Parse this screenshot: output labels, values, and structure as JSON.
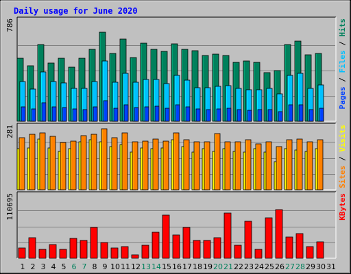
{
  "chart_data": {
    "type": "bar",
    "title": "Daily usage for June 2020",
    "categories": [
      "1",
      "2",
      "3",
      "4",
      "5",
      "6",
      "7",
      "8",
      "9",
      "10",
      "11",
      "12",
      "13",
      "14",
      "15",
      "16",
      "17",
      "18",
      "19",
      "20",
      "21",
      "22",
      "23",
      "24",
      "25",
      "26",
      "27",
      "28",
      "29",
      "30",
      "31"
    ],
    "weekend_days": [
      "6",
      "7",
      "13",
      "14",
      "20",
      "21",
      "27",
      "28"
    ],
    "colors": {
      "background": "#c0c0c0",
      "title": "#0000ff",
      "hits": "#00805c",
      "files": "#00c0ff",
      "pages": "#0040ff",
      "visits": "#ffff00",
      "sites": "#ff8000",
      "kbytes": "#ff0000",
      "weekday_label": "#000000",
      "weekend_label": "#00805c"
    },
    "panels": [
      {
        "name": "hits-files-pages",
        "max_label": "786",
        "ylim": [
          0,
          786
        ],
        "series": [
          {
            "name": "Hits",
            "values": [
              488,
              430,
              595,
              451,
              486,
              422,
              489,
              555,
              690,
              525,
              638,
              496,
              607,
              558,
              540,
              601,
              559,
              547,
              510,
              520,
              512,
              457,
              465,
              457,
              379,
              392,
              593,
              624,
              513,
              525,
              0
            ]
          },
          {
            "name": "Files",
            "values": [
              310,
              250,
              385,
              306,
              296,
              256,
              257,
              308,
              470,
              304,
              370,
              301,
              324,
              326,
              291,
              356,
              321,
              262,
              261,
              271,
              276,
              257,
              242,
              245,
              253,
              213,
              357,
              370,
              256,
              283,
              0
            ]
          },
          {
            "name": "Pages",
            "values": [
              110,
              98,
              145,
              112,
              105,
              95,
              92,
              110,
              158,
              102,
              130,
              108,
              112,
              115,
              102,
              128,
              112,
              96,
              90,
              98,
              100,
              90,
              85,
              88,
              90,
              75,
              125,
              130,
              92,
              100,
              0
            ]
          }
        ],
        "legend": [
          "Pages",
          "Files",
          "Hits"
        ]
      },
      {
        "name": "visits-sites",
        "max_label": "281",
        "ylim": [
          0,
          281
        ],
        "series": [
          {
            "name": "Visits",
            "values": [
              180,
              185,
              225,
              185,
              170,
              180,
              210,
              220,
              210,
              190,
              200,
              165,
              185,
              180,
              185,
              220,
              190,
              165,
              180,
              170,
              180,
              170,
              165,
              180,
              165,
              125,
              180,
              175,
              170,
              180,
              0
            ]
          },
          {
            "name": "Sites",
            "values": [
              230,
              245,
              250,
              235,
              207,
              215,
              240,
              245,
              270,
              230,
              250,
              210,
              215,
              225,
              215,
              250,
              222,
              210,
              210,
              248,
              210,
              210,
              220,
              202,
              210,
              190,
              220,
              225,
              212,
              220,
              0
            ]
          }
        ],
        "legend": [
          "Sites",
          "Visits"
        ]
      },
      {
        "name": "kbytes",
        "max_label": "110695",
        "ylim": [
          0,
          110695
        ],
        "series": [
          {
            "name": "KBytes",
            "values": [
              17500,
              36000,
              15500,
              23500,
              15500,
              35000,
              31500,
              53500,
              27500,
              17500,
              20000,
              6500,
              23000,
              45500,
              75000,
              40000,
              54000,
              31500,
              31500,
              36000,
              78000,
              23000,
              64500,
              15500,
              70000,
              85000,
              37000,
              42500,
              20000,
              29000,
              0
            ]
          }
        ],
        "legend": [
          "KBytes"
        ]
      }
    ]
  }
}
